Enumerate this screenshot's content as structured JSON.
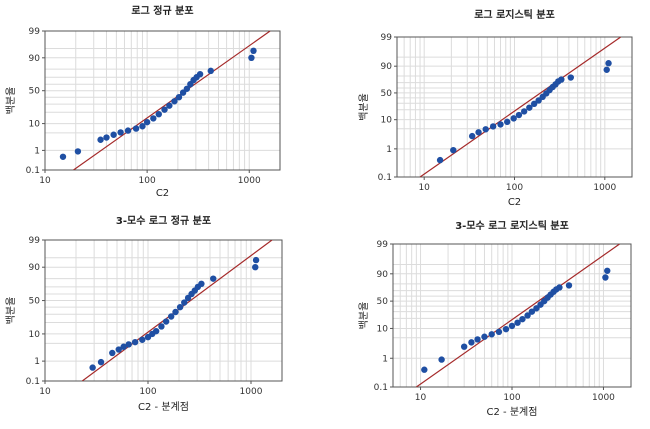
{
  "chart_data": [
    {
      "type": "scatter",
      "title": "로그 정규 분포",
      "xlabel": "C2",
      "ylabel": "백분율",
      "x_scale": "log",
      "xlim": [
        10,
        2000
      ],
      "y_scale": "probability",
      "ylim": [
        0.1,
        99
      ],
      "xticks": [
        "10",
        "100",
        "1000"
      ],
      "yticks": [
        "0.1",
        "1",
        "10",
        "50",
        "90",
        "99"
      ],
      "fit_line": {
        "color": "#a52a2a",
        "x": [
          19,
          1600
        ],
        "y": [
          0.1,
          99
        ]
      },
      "point_color": "#1f4fa3",
      "series": [
        {
          "points": [
            [
              15,
              0.5
            ],
            [
              21,
              0.9
            ],
            [
              35,
              2.8
            ],
            [
              40,
              3.4
            ],
            [
              47,
              4.3
            ],
            [
              55,
              5.2
            ],
            [
              65,
              6.0
            ],
            [
              78,
              7.0
            ],
            [
              90,
              8.3
            ],
            [
              100,
              11
            ],
            [
              115,
              14
            ],
            [
              130,
              18
            ],
            [
              148,
              23
            ],
            [
              165,
              28
            ],
            [
              185,
              34
            ],
            [
              205,
              40
            ],
            [
              225,
              47
            ],
            [
              245,
              53
            ],
            [
              265,
              60
            ],
            [
              285,
              66
            ],
            [
              305,
              70
            ],
            [
              330,
              74
            ],
            [
              420,
              78
            ],
            [
              1050,
              90
            ],
            [
              1100,
              94
            ]
          ]
        }
      ]
    },
    {
      "type": "scatter",
      "title": "로그 로지스틱 분포",
      "xlabel": "C2",
      "ylabel": "백분율",
      "x_scale": "log",
      "xlim": [
        5,
        2000
      ],
      "y_scale": "logistic",
      "ylim": [
        0.1,
        99
      ],
      "xticks": [
        "10",
        "100",
        "1000"
      ],
      "yticks": [
        "0.1",
        "1",
        "10",
        "50",
        "90",
        "99"
      ],
      "fit_line": {
        "color": "#a52a2a",
        "x": [
          9,
          1500
        ],
        "y": [
          0.1,
          99
        ]
      },
      "point_color": "#1f4fa3",
      "series": [
        {
          "points": [
            [
              15,
              0.4
            ],
            [
              21,
              0.9
            ],
            [
              34,
              2.8
            ],
            [
              40,
              3.8
            ],
            [
              48,
              4.8
            ],
            [
              58,
              6.0
            ],
            [
              70,
              7.0
            ],
            [
              83,
              8.5
            ],
            [
              98,
              11
            ],
            [
              112,
              14
            ],
            [
              128,
              18
            ],
            [
              146,
              23
            ],
            [
              165,
              29
            ],
            [
              185,
              35
            ],
            [
              205,
              42
            ],
            [
              225,
              49
            ],
            [
              245,
              56
            ],
            [
              265,
              62
            ],
            [
              285,
              67
            ],
            [
              305,
              72
            ],
            [
              330,
              75
            ],
            [
              420,
              78
            ],
            [
              1050,
              87
            ],
            [
              1100,
              92
            ]
          ]
        }
      ]
    },
    {
      "type": "scatter",
      "title": "3-모수 로그 정규 분포",
      "xlabel": "C2 - 분계점",
      "ylabel": "백분율",
      "x_scale": "log",
      "xlim": [
        10,
        2000
      ],
      "y_scale": "probability",
      "ylim": [
        0.1,
        99
      ],
      "xticks": [
        "10",
        "100",
        "1000"
      ],
      "yticks": [
        "0.1",
        "1",
        "10",
        "50",
        "90",
        "99"
      ],
      "fit_line": {
        "color": "#a52a2a",
        "x": [
          23,
          1600
        ],
        "y": [
          0.1,
          99
        ]
      },
      "point_color": "#1f4fa3",
      "series": [
        {
          "points": [
            [
              29,
              0.5
            ],
            [
              35,
              0.9
            ],
            [
              45,
              2.2
            ],
            [
              52,
              3.0
            ],
            [
              58,
              3.8
            ],
            [
              65,
              4.6
            ],
            [
              75,
              5.5
            ],
            [
              88,
              6.6
            ],
            [
              100,
              8.0
            ],
            [
              110,
              10
            ],
            [
              120,
              12
            ],
            [
              135,
              16
            ],
            [
              150,
              21
            ],
            [
              168,
              27
            ],
            [
              185,
              33
            ],
            [
              205,
              40
            ],
            [
              225,
              47
            ],
            [
              245,
              54
            ],
            [
              265,
              60
            ],
            [
              285,
              65
            ],
            [
              305,
              70
            ],
            [
              330,
              74
            ],
            [
              430,
              80
            ],
            [
              1100,
              90
            ],
            [
              1120,
              94
            ]
          ]
        }
      ]
    },
    {
      "type": "scatter",
      "title": "3-모수 로그 로지스틱 분포",
      "xlabel": "C2 - 분계점",
      "ylabel": "백분율",
      "x_scale": "log",
      "xlim": [
        5,
        2000
      ],
      "y_scale": "logistic",
      "ylim": [
        0.1,
        99
      ],
      "xticks": [
        "10",
        "100",
        "1000"
      ],
      "yticks": [
        "0.1",
        "1",
        "10",
        "50",
        "90",
        "99"
      ],
      "fit_line": {
        "color": "#a52a2a",
        "x": [
          9,
          1500
        ],
        "y": [
          0.1,
          99
        ]
      },
      "point_color": "#1f4fa3",
      "series": [
        {
          "points": [
            [
              11,
              0.4
            ],
            [
              17,
              0.9
            ],
            [
              30,
              2.5
            ],
            [
              36,
              3.5
            ],
            [
              42,
              4.4
            ],
            [
              50,
              5.4
            ],
            [
              60,
              6.5
            ],
            [
              72,
              7.8
            ],
            [
              86,
              9.5
            ],
            [
              100,
              12
            ],
            [
              115,
              15
            ],
            [
              130,
              19
            ],
            [
              148,
              24
            ],
            [
              165,
              30
            ],
            [
              185,
              36
            ],
            [
              205,
              43
            ],
            [
              225,
              50
            ],
            [
              245,
              57
            ],
            [
              265,
              63
            ],
            [
              285,
              68
            ],
            [
              305,
              72
            ],
            [
              330,
              75
            ],
            [
              420,
              78
            ],
            [
              1050,
              87
            ],
            [
              1100,
              92
            ]
          ]
        }
      ]
    }
  ]
}
